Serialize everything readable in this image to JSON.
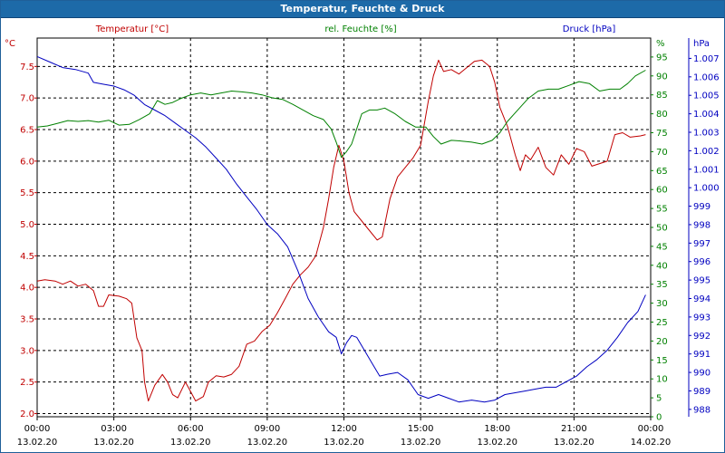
{
  "chart_data": {
    "type": "line",
    "title": "Temperatur, Feuchte & Druck",
    "grid": true,
    "x_ticks": [
      {
        "time": "00:00",
        "date": "13.02.20",
        "h": 0
      },
      {
        "time": "03:00",
        "date": "13.02.20",
        "h": 3
      },
      {
        "time": "06:00",
        "date": "13.02.20",
        "h": 6
      },
      {
        "time": "09:00",
        "date": "13.02.20",
        "h": 9
      },
      {
        "time": "12:00",
        "date": "13.02.20",
        "h": 12
      },
      {
        "time": "15:00",
        "date": "13.02.20",
        "h": 15
      },
      {
        "time": "18:00",
        "date": "13.02.20",
        "h": 18
      },
      {
        "time": "21:00",
        "date": "13.02.20",
        "h": 21
      },
      {
        "time": "00:00",
        "date": "14.02.20",
        "h": 24
      }
    ],
    "axes": {
      "temperature": {
        "label": "Temperatur [°C]",
        "unit": "°C",
        "range": [
          1.95,
          7.95
        ],
        "ticks": [
          "2.0",
          "2.5",
          "3.0",
          "3.5",
          "4.0",
          "4.5",
          "5.0",
          "5.5",
          "6.0",
          "6.5",
          "7.0",
          "7.5"
        ],
        "color": "#c00000"
      },
      "humidity": {
        "label": "rel. Feuchte [%]",
        "unit": "%",
        "range": [
          0,
          100
        ],
        "ticks": [
          "0",
          "5",
          "10",
          "15",
          "20",
          "25",
          "30",
          "35",
          "40",
          "45",
          "50",
          "55",
          "60",
          "65",
          "70",
          "75",
          "80",
          "85",
          "90",
          "95"
        ],
        "color": "#008000"
      },
      "pressure": {
        "label": "Druck [hPa]",
        "unit": "hPa",
        "range": [
          987.6,
          1008.1
        ],
        "ticks": [
          "988",
          "989",
          "990",
          "991",
          "992",
          "993",
          "994",
          "995",
          "996",
          "997",
          "998",
          "999",
          "1.000",
          "1.001",
          "1.002",
          "1.003",
          "1.004",
          "1.005",
          "1.006",
          "1.007"
        ],
        "color": "#0000c0"
      }
    },
    "series": [
      {
        "name": "Temperatur [°C]",
        "axis": "temperature",
        "color": "#c00000",
        "data": [
          [
            0,
            4.1
          ],
          [
            0.3,
            4.12
          ],
          [
            0.7,
            4.1
          ],
          [
            1.0,
            4.05
          ],
          [
            1.3,
            4.1
          ],
          [
            1.6,
            4.02
          ],
          [
            1.9,
            4.05
          ],
          [
            2.2,
            3.95
          ],
          [
            2.4,
            3.7
          ],
          [
            2.6,
            3.7
          ],
          [
            2.8,
            3.88
          ],
          [
            3.2,
            3.86
          ],
          [
            3.5,
            3.82
          ],
          [
            3.7,
            3.75
          ],
          [
            3.9,
            3.2
          ],
          [
            4.1,
            3.0
          ],
          [
            4.2,
            2.5
          ],
          [
            4.35,
            2.2
          ],
          [
            4.6,
            2.45
          ],
          [
            4.9,
            2.62
          ],
          [
            5.1,
            2.5
          ],
          [
            5.3,
            2.3
          ],
          [
            5.5,
            2.25
          ],
          [
            5.8,
            2.5
          ],
          [
            6.0,
            2.35
          ],
          [
            6.2,
            2.2
          ],
          [
            6.5,
            2.27
          ],
          [
            6.7,
            2.5
          ],
          [
            7.0,
            2.6
          ],
          [
            7.3,
            2.58
          ],
          [
            7.6,
            2.62
          ],
          [
            7.9,
            2.75
          ],
          [
            8.2,
            3.1
          ],
          [
            8.5,
            3.15
          ],
          [
            8.8,
            3.3
          ],
          [
            9.1,
            3.4
          ],
          [
            9.4,
            3.6
          ],
          [
            9.7,
            3.82
          ],
          [
            10.0,
            4.05
          ],
          [
            10.3,
            4.2
          ],
          [
            10.6,
            4.32
          ],
          [
            10.9,
            4.5
          ],
          [
            11.2,
            4.95
          ],
          [
            11.4,
            5.4
          ],
          [
            11.6,
            5.9
          ],
          [
            11.8,
            6.25
          ],
          [
            12.0,
            6.0
          ],
          [
            12.2,
            5.5
          ],
          [
            12.4,
            5.2
          ],
          [
            12.7,
            5.05
          ],
          [
            13.0,
            4.9
          ],
          [
            13.3,
            4.75
          ],
          [
            13.5,
            4.8
          ],
          [
            13.8,
            5.4
          ],
          [
            14.1,
            5.75
          ],
          [
            14.4,
            5.9
          ],
          [
            14.7,
            6.05
          ],
          [
            15.0,
            6.25
          ],
          [
            15.3,
            6.95
          ],
          [
            15.5,
            7.35
          ],
          [
            15.7,
            7.6
          ],
          [
            15.9,
            7.42
          ],
          [
            16.2,
            7.45
          ],
          [
            16.5,
            7.38
          ],
          [
            16.8,
            7.48
          ],
          [
            17.1,
            7.58
          ],
          [
            17.4,
            7.6
          ],
          [
            17.7,
            7.5
          ],
          [
            17.9,
            7.25
          ],
          [
            18.1,
            6.85
          ],
          [
            18.4,
            6.55
          ],
          [
            18.7,
            6.1
          ],
          [
            18.9,
            5.85
          ],
          [
            19.1,
            6.1
          ],
          [
            19.3,
            6.02
          ],
          [
            19.6,
            6.22
          ],
          [
            19.9,
            5.9
          ],
          [
            20.2,
            5.78
          ],
          [
            20.5,
            6.1
          ],
          [
            20.8,
            5.95
          ],
          [
            21.1,
            6.2
          ],
          [
            21.4,
            6.15
          ],
          [
            21.7,
            5.92
          ],
          [
            22.0,
            5.96
          ],
          [
            22.3,
            6.0
          ],
          [
            22.6,
            6.42
          ],
          [
            22.9,
            6.45
          ],
          [
            23.2,
            6.38
          ],
          [
            23.6,
            6.4
          ],
          [
            23.8,
            6.42
          ]
        ]
      },
      {
        "name": "rel. Feuchte [%]",
        "axis": "humidity",
        "color": "#008000",
        "data": [
          [
            0,
            76.5
          ],
          [
            0.4,
            76.8
          ],
          [
            0.8,
            77.5
          ],
          [
            1.2,
            78.2
          ],
          [
            1.6,
            78.0
          ],
          [
            2.0,
            78.2
          ],
          [
            2.4,
            77.8
          ],
          [
            2.8,
            78.3
          ],
          [
            3.2,
            77.0
          ],
          [
            3.6,
            77.2
          ],
          [
            4.0,
            78.5
          ],
          [
            4.4,
            80.0
          ],
          [
            4.7,
            83.5
          ],
          [
            5.0,
            82.5
          ],
          [
            5.3,
            83.0
          ],
          [
            5.6,
            84.0
          ],
          [
            6.0,
            85.0
          ],
          [
            6.4,
            85.5
          ],
          [
            6.8,
            85.0
          ],
          [
            7.2,
            85.5
          ],
          [
            7.6,
            86.0
          ],
          [
            8.0,
            85.8
          ],
          [
            8.4,
            85.5
          ],
          [
            8.8,
            85.0
          ],
          [
            9.2,
            84.2
          ],
          [
            9.6,
            83.8
          ],
          [
            10.0,
            82.5
          ],
          [
            10.4,
            81.0
          ],
          [
            10.8,
            79.5
          ],
          [
            11.2,
            78.5
          ],
          [
            11.5,
            76.0
          ],
          [
            11.7,
            72.5
          ],
          [
            11.9,
            68.5
          ],
          [
            12.1,
            70.0
          ],
          [
            12.3,
            72.0
          ],
          [
            12.5,
            76.0
          ],
          [
            12.7,
            80.0
          ],
          [
            13.0,
            81.0
          ],
          [
            13.3,
            81.0
          ],
          [
            13.6,
            81.5
          ],
          [
            14.0,
            80.0
          ],
          [
            14.4,
            78.0
          ],
          [
            14.8,
            76.5
          ],
          [
            15.2,
            76.5
          ],
          [
            15.5,
            74.0
          ],
          [
            15.8,
            72.0
          ],
          [
            16.2,
            73.0
          ],
          [
            16.6,
            72.8
          ],
          [
            17.0,
            72.5
          ],
          [
            17.4,
            72.0
          ],
          [
            17.8,
            73.0
          ],
          [
            18.1,
            75.0
          ],
          [
            18.4,
            78.0
          ],
          [
            18.8,
            81.0
          ],
          [
            19.2,
            84.0
          ],
          [
            19.6,
            86.0
          ],
          [
            20.0,
            86.5
          ],
          [
            20.4,
            86.5
          ],
          [
            20.8,
            87.5
          ],
          [
            21.2,
            88.5
          ],
          [
            21.6,
            88.0
          ],
          [
            22.0,
            86.0
          ],
          [
            22.4,
            86.5
          ],
          [
            22.8,
            86.5
          ],
          [
            23.1,
            88.0
          ],
          [
            23.4,
            90.0
          ],
          [
            23.8,
            91.5
          ]
        ]
      },
      {
        "name": "Druck [hPa]",
        "axis": "pressure",
        "color": "#0000c0",
        "data": [
          [
            0,
            1007.1
          ],
          [
            0.5,
            1006.8
          ],
          [
            1.0,
            1006.5
          ],
          [
            1.5,
            1006.4
          ],
          [
            2.0,
            1006.2
          ],
          [
            2.2,
            1005.7
          ],
          [
            2.6,
            1005.6
          ],
          [
            3.0,
            1005.5
          ],
          [
            3.4,
            1005.3
          ],
          [
            3.8,
            1005.0
          ],
          [
            4.2,
            1004.5
          ],
          [
            4.6,
            1004.2
          ],
          [
            5.0,
            1003.9
          ],
          [
            5.4,
            1003.5
          ],
          [
            5.8,
            1003.1
          ],
          [
            6.2,
            1002.7
          ],
          [
            6.6,
            1002.2
          ],
          [
            7.0,
            1001.6
          ],
          [
            7.4,
            1001.0
          ],
          [
            7.8,
            1000.2
          ],
          [
            8.2,
            999.5
          ],
          [
            8.6,
            998.8
          ],
          [
            9.0,
            998.0
          ],
          [
            9.4,
            997.5
          ],
          [
            9.8,
            996.8
          ],
          [
            10.2,
            995.5
          ],
          [
            10.6,
            994.0
          ],
          [
            11.0,
            993.0
          ],
          [
            11.4,
            992.2
          ],
          [
            11.7,
            991.9
          ],
          [
            11.9,
            991.0
          ],
          [
            12.1,
            991.6
          ],
          [
            12.3,
            992.0
          ],
          [
            12.5,
            991.9
          ],
          [
            12.8,
            991.2
          ],
          [
            13.1,
            990.5
          ],
          [
            13.4,
            989.8
          ],
          [
            13.7,
            989.9
          ],
          [
            14.1,
            990.0
          ],
          [
            14.5,
            989.6
          ],
          [
            14.9,
            988.8
          ],
          [
            15.3,
            988.6
          ],
          [
            15.7,
            988.8
          ],
          [
            16.1,
            988.6
          ],
          [
            16.5,
            988.4
          ],
          [
            17.0,
            988.5
          ],
          [
            17.5,
            988.4
          ],
          [
            17.9,
            988.5
          ],
          [
            18.3,
            988.8
          ],
          [
            18.7,
            988.9
          ],
          [
            19.1,
            989.0
          ],
          [
            19.5,
            989.1
          ],
          [
            19.9,
            989.2
          ],
          [
            20.3,
            989.2
          ],
          [
            20.7,
            989.5
          ],
          [
            21.1,
            989.8
          ],
          [
            21.5,
            990.3
          ],
          [
            21.9,
            990.7
          ],
          [
            22.3,
            991.2
          ],
          [
            22.7,
            991.9
          ],
          [
            23.1,
            992.7
          ],
          [
            23.5,
            993.3
          ],
          [
            23.8,
            994.2
          ]
        ]
      }
    ]
  }
}
